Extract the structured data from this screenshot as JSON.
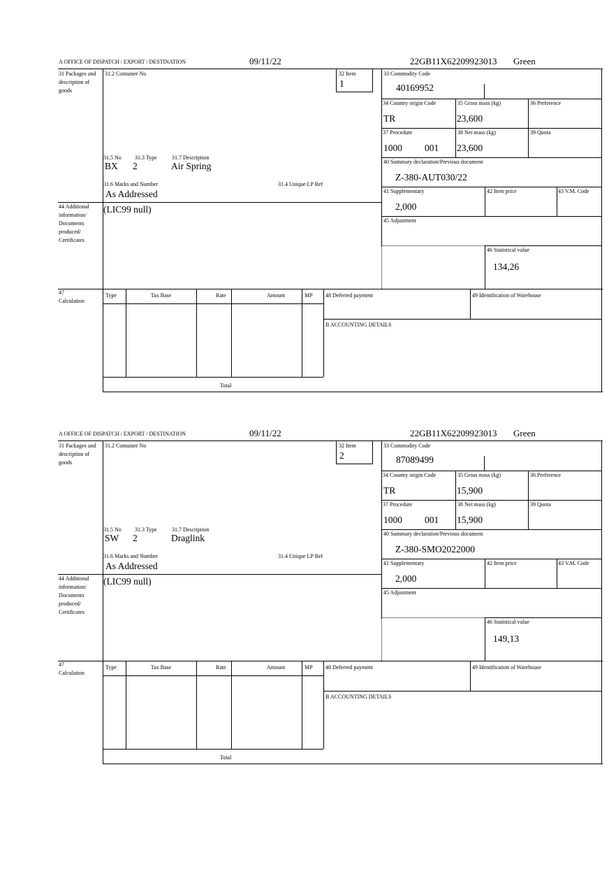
{
  "labels": {
    "office": "A  OFFICE OF DISPATCH / EXPORT / DESTINATION",
    "packages": "31 Packages and description of goods",
    "container": "31.2 Container No",
    "item": "32 Item",
    "no": "31.5 No",
    "type": "31.3 Type",
    "description": "31.7 Description",
    "marks": "31.6 Marks and Number",
    "unique_ref": "31.4 Unique LP Ref",
    "additional": "44 Additional information/ Documents produced/ Certificates",
    "commodity": "33 Commodity Code",
    "country": "34 Country origin Code",
    "gross": "35 Gross mass (kg)",
    "preference": "36 Preference",
    "procedure": "37 Procedure",
    "net": "38 Net mass (kg)",
    "quota": "39 Quota",
    "summary": "40 Summary declaration/Previous document",
    "supplementary": "41 Supplementary",
    "item_price": "42 Item price",
    "vm_code": "43 V.M. Code",
    "adjustment": "45 Adjustment",
    "statistical": "46 Statistical value",
    "calculation_no": "47",
    "calculation": "Calculation",
    "calc_cols": [
      "Type",
      "Tax Base",
      "Rate",
      "Amount",
      "MP"
    ],
    "total": "Total",
    "deferred": "48 Deferred payment",
    "warehouse": "49 Identification of Warehouse",
    "accounting": "B ACCOUNTING DETAILS"
  },
  "forms": [
    {
      "date": "09/11/22",
      "reference": "22GB11X62209923013",
      "route": "Green",
      "item": "1",
      "no": "BX",
      "type": "2",
      "description": "Air Spring",
      "marks": "As Addressed",
      "additional": "(LIC99 null)",
      "commodity": "40169952",
      "country": "TR",
      "gross": "23,600",
      "procedure": "1000",
      "procedure_add": "001",
      "net": "23,600",
      "summary": "Z-380-AUT030/22",
      "supplementary": "2,000",
      "statistical": "134,26"
    },
    {
      "date": "09/11/22",
      "reference": "22GB11X62209923013",
      "route": "Green",
      "item": "2",
      "no": "SW",
      "type": "2",
      "description": "Draglink",
      "marks": "As Addressed",
      "additional": "(LIC99 null)",
      "commodity": "87089499",
      "country": "TR",
      "gross": "15,900",
      "procedure": "1000",
      "procedure_add": "001",
      "net": "15,900",
      "summary": "Z-380-SMO2022000",
      "supplementary": "2,000",
      "statistical": "149,13"
    }
  ]
}
